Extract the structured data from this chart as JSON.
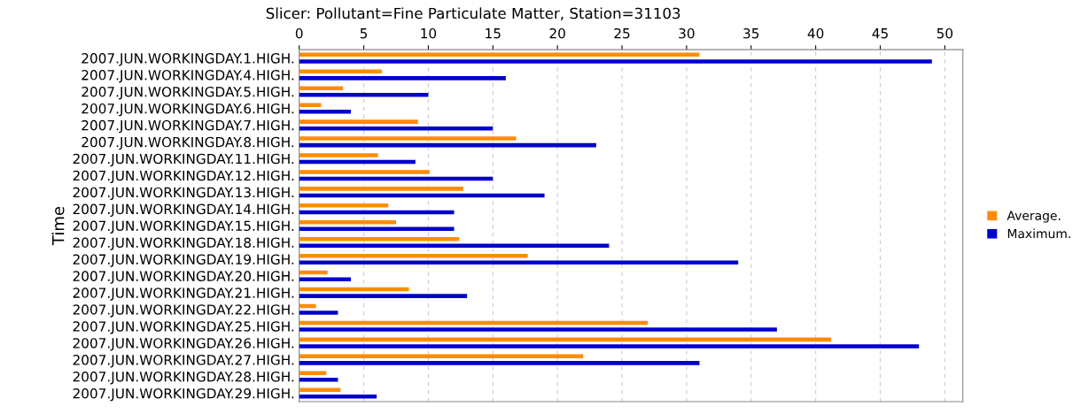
{
  "chart_data": {
    "type": "bar",
    "orientation": "horizontal",
    "title": "Slicer: Pollutant=Fine Particulate Matter, Station=31103",
    "ylabel": "Time",
    "categories": [
      "2007.JUN.WORKINGDAY.1.HIGH.",
      "2007.JUN.WORKINGDAY.4.HIGH.",
      "2007.JUN.WORKINGDAY.5.HIGH.",
      "2007.JUN.WORKINGDAY.6.HIGH.",
      "2007.JUN.WORKINGDAY.7.HIGH.",
      "2007.JUN.WORKINGDAY.8.HIGH.",
      "2007.JUN.WORKINGDAY.11.HIGH.",
      "2007.JUN.WORKINGDAY.12.HIGH.",
      "2007.JUN.WORKINGDAY.13.HIGH.",
      "2007.JUN.WORKINGDAY.14.HIGH.",
      "2007.JUN.WORKINGDAY.15.HIGH.",
      "2007.JUN.WORKINGDAY.18.HIGH.",
      "2007.JUN.WORKINGDAY.19.HIGH.",
      "2007.JUN.WORKINGDAY.20.HIGH.",
      "2007.JUN.WORKINGDAY.21.HIGH.",
      "2007.JUN.WORKINGDAY.22.HIGH.",
      "2007.JUN.WORKINGDAY.25.HIGH.",
      "2007.JUN.WORKINGDAY.26.HIGH.",
      "2007.JUN.WORKINGDAY.27.HIGH.",
      "2007.JUN.WORKINGDAY.28.HIGH.",
      "2007.JUN.WORKINGDAY.29.HIGH."
    ],
    "series": [
      {
        "name": "Average.",
        "color": "#ff8c00",
        "values": [
          31,
          6.4,
          3.4,
          1.7,
          9.2,
          16.8,
          6.1,
          10.1,
          12.7,
          6.9,
          7.5,
          12.4,
          17.7,
          2.2,
          8.5,
          1.3,
          27,
          41.2,
          22,
          2.1,
          3.2
        ]
      },
      {
        "name": "Maximum.",
        "color": "#0000cc",
        "values": [
          49,
          16,
          10,
          4,
          15,
          23,
          9,
          15,
          19,
          12,
          12,
          24,
          34,
          4,
          13,
          3,
          37,
          48,
          31,
          3,
          6
        ]
      }
    ],
    "xlim": [
      0,
      51.4
    ],
    "xticks": [
      0,
      5,
      10,
      15,
      20,
      25,
      30,
      35,
      40,
      45,
      50
    ],
    "grid": "x",
    "legend": "right"
  }
}
